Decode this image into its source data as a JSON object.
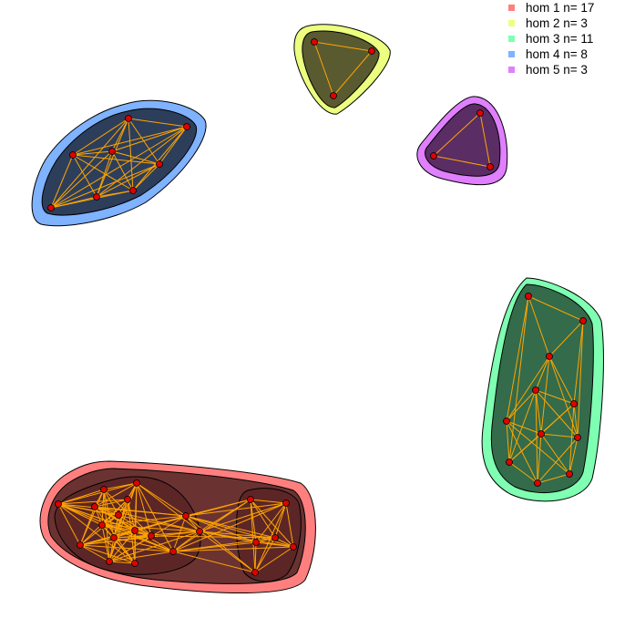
{
  "legend": [
    {
      "label": "hom 1 n= 17",
      "color": "#ff7f7f"
    },
    {
      "label": "hom 2 n= 3",
      "color": "#ecff7f"
    },
    {
      "label": "hom 3 n= 11",
      "color": "#7fffb2"
    },
    {
      "label": "hom 4 n= 8",
      "color": "#7fb2ff"
    },
    {
      "label": "hom 5 n= 3",
      "color": "#e07fff"
    }
  ],
  "colors": {
    "node_fill": "#e00000",
    "edge": "#ffa500",
    "hull_outline": "#000000"
  }
}
